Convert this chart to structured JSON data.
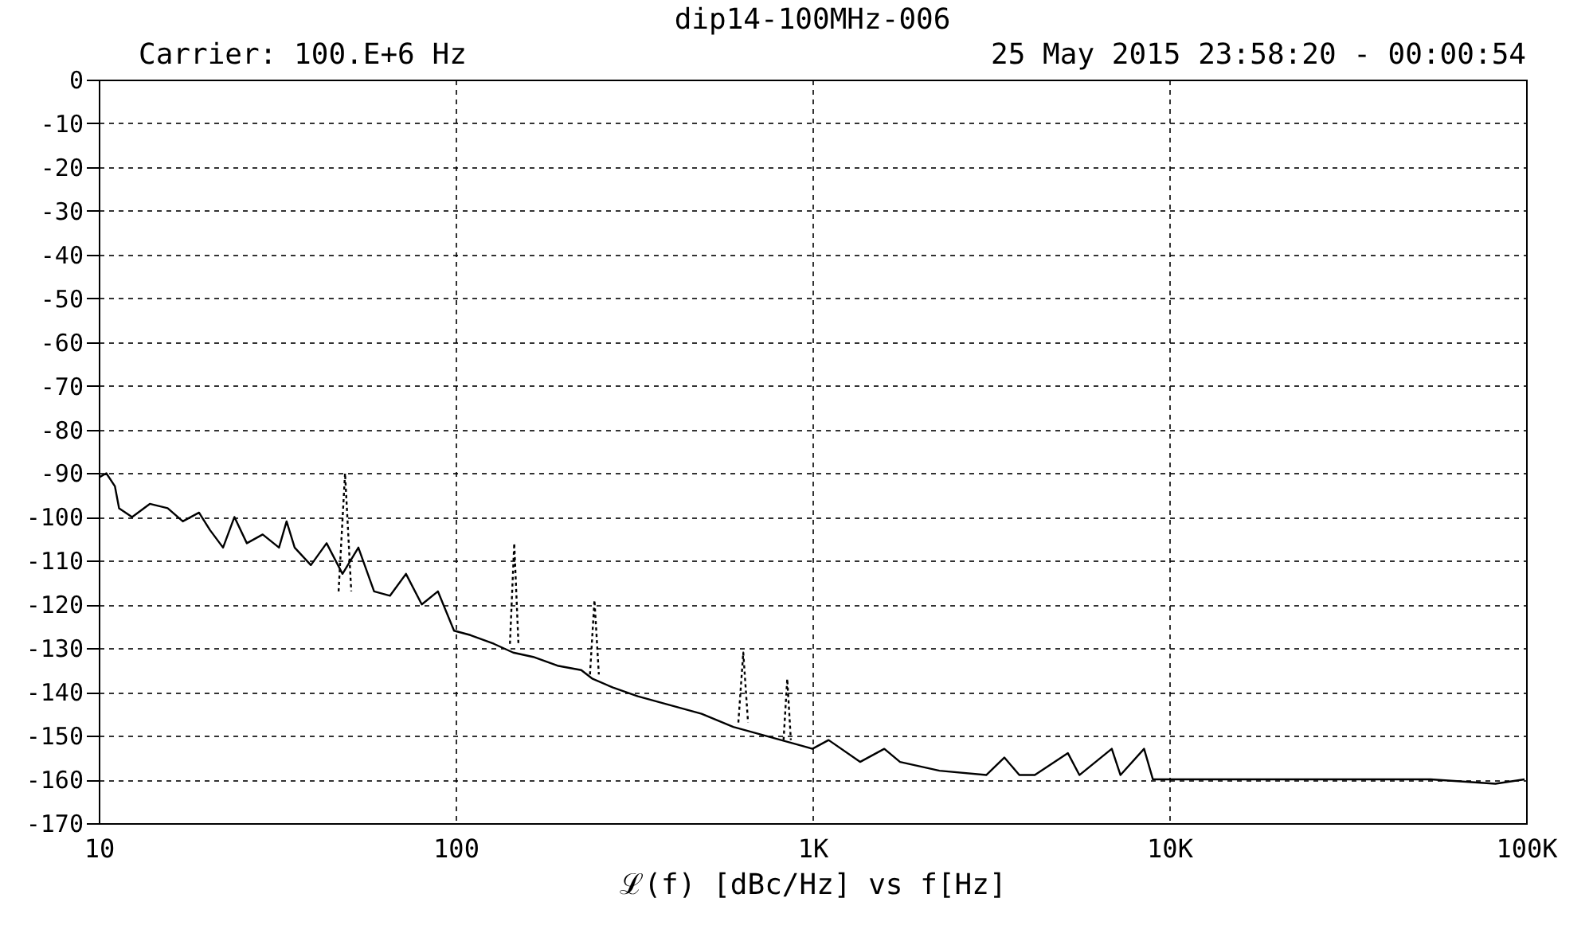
{
  "chart_data": {
    "type": "line",
    "title": "dip14-100MHz-006",
    "subtitle": "25 May 2015  23:58:20 - 00:00:54",
    "annotations": [
      "Carrier: 100.E+6 Hz"
    ],
    "xlabel": "ℒ(f) [dBc/Hz] vs f[Hz]",
    "log": "x",
    "grid": true,
    "marker": "none",
    "xlim": [
      10,
      100000
    ],
    "xticks": [
      10,
      100,
      {
        "value": 1000,
        "label": "1K"
      },
      {
        "value": 10000,
        "label": "10K"
      },
      {
        "value": 100000,
        "label": "100K"
      }
    ],
    "ylim": [
      -170,
      0
    ],
    "yticks": [
      0,
      -10,
      -20,
      -30,
      -40,
      -50,
      -60,
      -70,
      -80,
      -90,
      -100,
      -110,
      -120,
      -130,
      -140,
      -150,
      -160,
      -170
    ],
    "series": [
      {
        "color": "#000000",
        "line_style": "solid",
        "x": [
          10,
          10.5,
          11.1,
          11.4,
          12.4,
          13.9,
          15.6,
          17.2,
          19.1,
          20.5,
          22.3,
          24,
          26,
          28.8,
          32,
          33.6,
          35.4,
          39.3,
          43.5,
          48.2,
          53.4,
          59.1,
          65.5,
          72.6,
          80.4,
          89.2,
          99,
          110,
          128,
          145,
          165,
          193,
          225,
          242,
          276,
          324,
          398,
          489,
          600,
          737,
          905,
          1000,
          1110,
          1360,
          1590,
          1760,
          2270,
          3070,
          3450,
          3800,
          4200,
          5200,
          5600,
          6900,
          7300,
          8500,
          9000,
          9900,
          16000,
          26800,
          36000,
          54000,
          82000,
          99000
        ],
        "values": [
          -91,
          -90,
          -93,
          -98,
          -100,
          -97,
          -98,
          -101,
          -99,
          -103,
          -107,
          -100,
          -106,
          -104,
          -107,
          -101,
          -107,
          -111,
          -106,
          -113,
          -107,
          -117,
          -118,
          -113,
          -120,
          -117,
          -126,
          -127,
          -129,
          -131,
          -132,
          -134,
          -135,
          -137,
          -139,
          -141,
          -143,
          -145,
          -148,
          -150,
          -152,
          -153,
          -151,
          -156,
          -153,
          -156,
          -158,
          -159,
          -155,
          -159,
          -159,
          -154,
          -159,
          -153,
          -159,
          -153,
          -160,
          -160,
          -160,
          -160,
          -160,
          -160,
          -161,
          -160
        ]
      },
      {
        "color": "#000000",
        "line_style": "dotted",
        "x": [
          47,
          49,
          51
        ],
        "values": [
          -117,
          -90,
          -117
        ]
      },
      {
        "color": "#000000",
        "line_style": "dotted",
        "x": [
          142,
          146,
          150
        ],
        "values": [
          -129,
          -106,
          -129
        ]
      },
      {
        "color": "#000000",
        "line_style": "dotted",
        "x": [
          238,
          245,
          252
        ],
        "values": [
          -136,
          -119,
          -136
        ]
      },
      {
        "color": "#000000",
        "line_style": "dotted",
        "x": [
          620,
          640,
          660
        ],
        "values": [
          -147,
          -131,
          -147
        ]
      },
      {
        "color": "#000000",
        "line_style": "dotted",
        "x": [
          830,
          850,
          870
        ],
        "values": [
          -151,
          -137,
          -151
        ]
      }
    ]
  }
}
